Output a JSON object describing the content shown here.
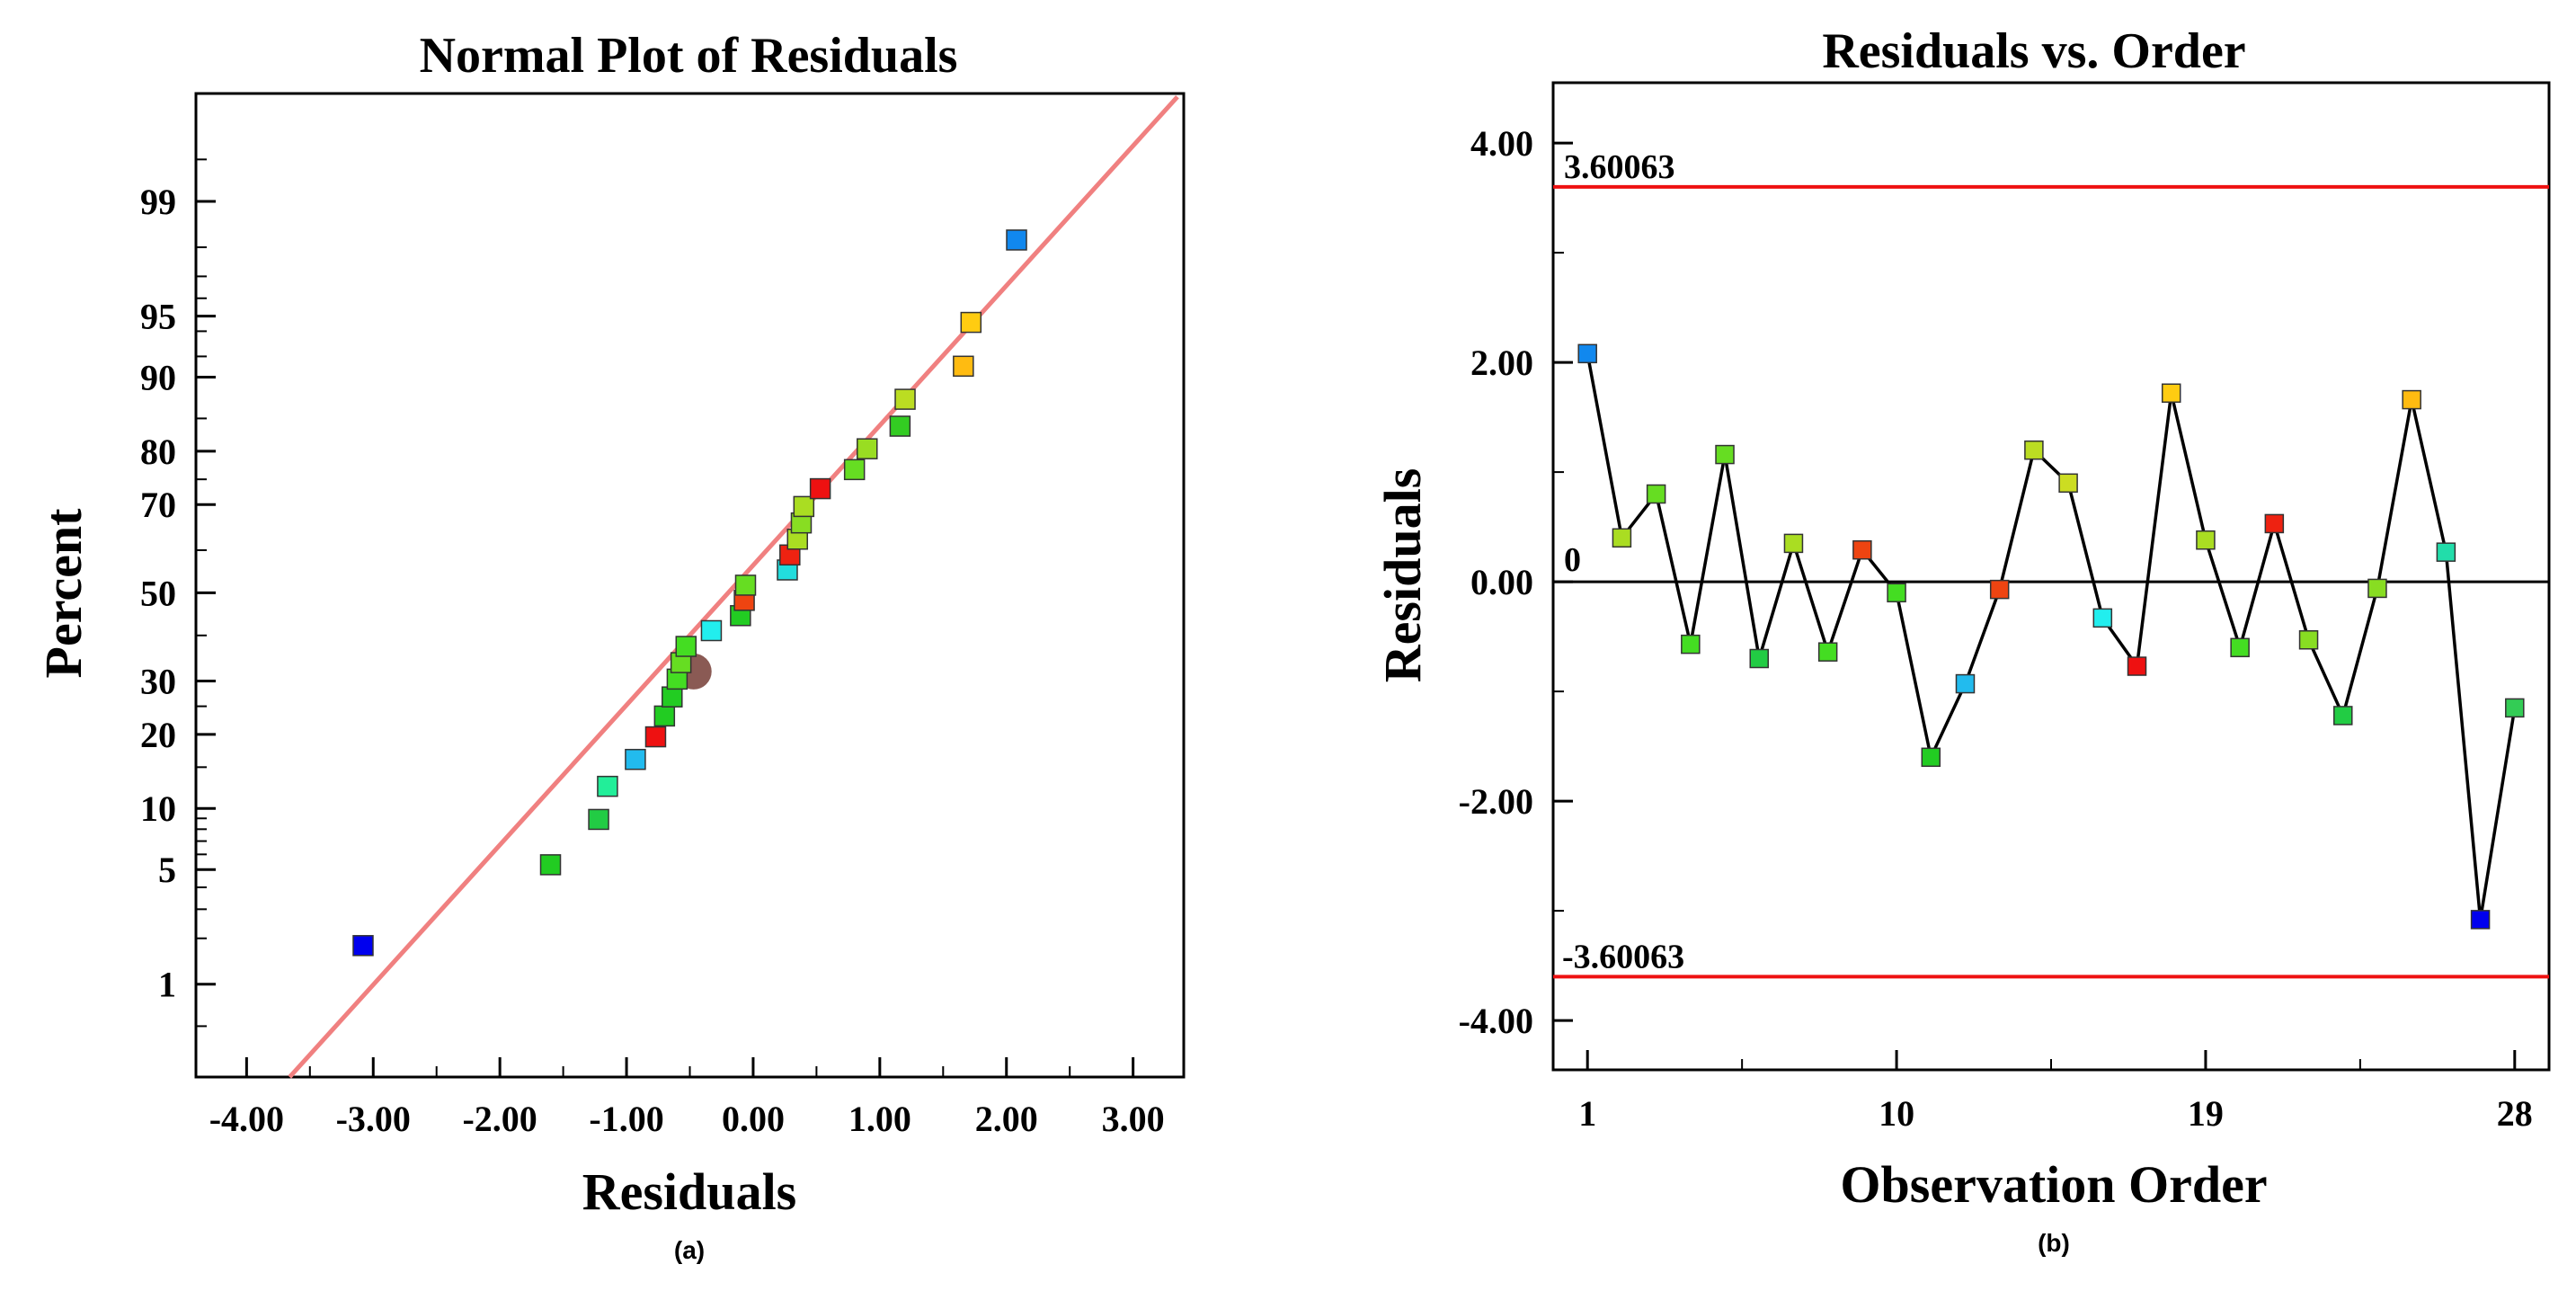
{
  "chart_data": [
    {
      "id": "normal-plot",
      "type": "scatter",
      "title": "Normal Plot of Residuals",
      "xlabel": "Residuals",
      "ylabel": "Percent",
      "caption": "(a)",
      "xlim": [
        -4.4,
        3.4
      ],
      "x_ticks": [
        -4.0,
        -3.0,
        -2.0,
        -1.0,
        0.0,
        1.0,
        2.0,
        3.0
      ],
      "x_tick_labels": [
        "-4.00",
        "-3.00",
        "-2.00",
        "-1.00",
        "0.00",
        "1.00",
        "2.00",
        "3.00"
      ],
      "y_scale": "normal-probability",
      "ylim": [
        0.2,
        99.85
      ],
      "y_ticks": [
        1,
        5,
        10,
        20,
        30,
        50,
        70,
        80,
        90,
        95,
        99
      ],
      "y_tick_labels": [
        "1",
        "5",
        "10",
        "20",
        "30",
        "50",
        "70",
        "80",
        "90",
        "95",
        "99"
      ],
      "fit_line": {
        "x": [
          -3.66,
          3.35
        ],
        "y": [
          0.2,
          99.84
        ],
        "color": "#f08080"
      },
      "points": [
        {
          "x": -3.08,
          "y": 1.8,
          "color": "#0000ee"
        },
        {
          "x": -1.6,
          "y": 5.3,
          "color": "#22cc22"
        },
        {
          "x": -1.22,
          "y": 8.9,
          "color": "#22cc44"
        },
        {
          "x": -1.15,
          "y": 12.5,
          "color": "#22ee99"
        },
        {
          "x": -0.93,
          "y": 16.1,
          "color": "#22bbee"
        },
        {
          "x": -0.77,
          "y": 19.6,
          "color": "#ee1111"
        },
        {
          "x": -0.7,
          "y": 23.2,
          "color": "#22cc22"
        },
        {
          "x": -0.64,
          "y": 26.8,
          "color": "#22cc22"
        },
        {
          "x": -0.6,
          "y": 30.4,
          "color": "#44dd22"
        },
        {
          "x": -0.57,
          "y": 33.9,
          "color": "#66dd22"
        },
        {
          "x": -0.53,
          "y": 37.5,
          "color": "#44dd22"
        },
        {
          "x": -0.33,
          "y": 41.1,
          "color": "#22eeee"
        },
        {
          "x": -0.1,
          "y": 44.6,
          "color": "#22cc22"
        },
        {
          "x": -0.07,
          "y": 48.2,
          "color": "#ee4411"
        },
        {
          "x": -0.06,
          "y": 51.8,
          "color": "#66dd22"
        },
        {
          "x": 0.27,
          "y": 55.4,
          "color": "#22dddd"
        },
        {
          "x": 0.29,
          "y": 58.9,
          "color": "#ee2211"
        },
        {
          "x": 0.35,
          "y": 62.5,
          "color": "#aadd22"
        },
        {
          "x": 0.38,
          "y": 66.1,
          "color": "#88dd22"
        },
        {
          "x": 0.4,
          "y": 69.6,
          "color": "#aadd22"
        },
        {
          "x": 0.53,
          "y": 73.2,
          "color": "#ee1111"
        },
        {
          "x": 0.8,
          "y": 76.8,
          "color": "#66dd22"
        },
        {
          "x": 0.9,
          "y": 80.4,
          "color": "#99dd22"
        },
        {
          "x": 1.16,
          "y": 83.9,
          "color": "#33cc22"
        },
        {
          "x": 1.2,
          "y": 87.5,
          "color": "#bbdd22"
        },
        {
          "x": 1.66,
          "y": 91.1,
          "color": "#ffbb11"
        },
        {
          "x": 1.72,
          "y": 94.6,
          "color": "#ffcc11"
        },
        {
          "x": 2.08,
          "y": 98.2,
          "color": "#1188ee"
        }
      ],
      "highlight_point": {
        "x": -0.47,
        "y": 32.0,
        "color": "#8a5a54"
      }
    },
    {
      "id": "residuals-vs-order",
      "type": "line",
      "title": "Residuals vs. Order",
      "xlabel": "Observation Order",
      "ylabel": "Residuals",
      "caption": "(b)",
      "xlim": [
        0.0,
        29.0
      ],
      "x_ticks": [
        1,
        10,
        19,
        28
      ],
      "x_tick_labels": [
        "1",
        "10",
        "19",
        "28"
      ],
      "ylim": [
        -4.45,
        4.55
      ],
      "y_ticks": [
        -4.0,
        -2.0,
        0.0,
        2.0,
        4.0
      ],
      "y_tick_labels": [
        "-4.00",
        "-2.00",
        "0.00",
        "2.00",
        "4.00"
      ],
      "upper_limit": {
        "value": 3.60063,
        "label": "3.60063",
        "color": "#ee1111"
      },
      "lower_limit": {
        "value": -3.60063,
        "label": "-3.60063",
        "color": "#ee1111"
      },
      "zero_line": {
        "value": 0,
        "label": "0"
      },
      "series": [
        {
          "name": "Residuals",
          "x": [
            1,
            2,
            3,
            4,
            5,
            6,
            7,
            8,
            9,
            10,
            11,
            12,
            13,
            14,
            15,
            16,
            17,
            18,
            19,
            20,
            21,
            22,
            23,
            24,
            25,
            26,
            27,
            28
          ],
          "values": [
            2.08,
            0.4,
            0.8,
            -0.57,
            1.16,
            -0.7,
            0.35,
            -0.64,
            0.29,
            -0.1,
            -1.6,
            -0.93,
            -0.07,
            1.2,
            0.9,
            -0.33,
            -0.77,
            1.72,
            0.38,
            -0.6,
            0.53,
            -0.53,
            -1.22,
            -0.06,
            1.66,
            0.27,
            -3.08,
            -1.15
          ],
          "colors": [
            "#1188ee",
            "#aadd22",
            "#66dd22",
            "#44dd22",
            "#66dd22",
            "#22cc44",
            "#aadd22",
            "#44dd22",
            "#ee4411",
            "#44dd22",
            "#22cc22",
            "#22bbee",
            "#ee4411",
            "#bbdd22",
            "#ccdd22",
            "#22eeee",
            "#ee1111",
            "#ffcc11",
            "#aadd22",
            "#44dd22",
            "#ee2211",
            "#88dd22",
            "#22cc44",
            "#88dd22",
            "#ffbb11",
            "#22ddaa",
            "#0000ee",
            "#33cc55"
          ]
        }
      ]
    }
  ]
}
